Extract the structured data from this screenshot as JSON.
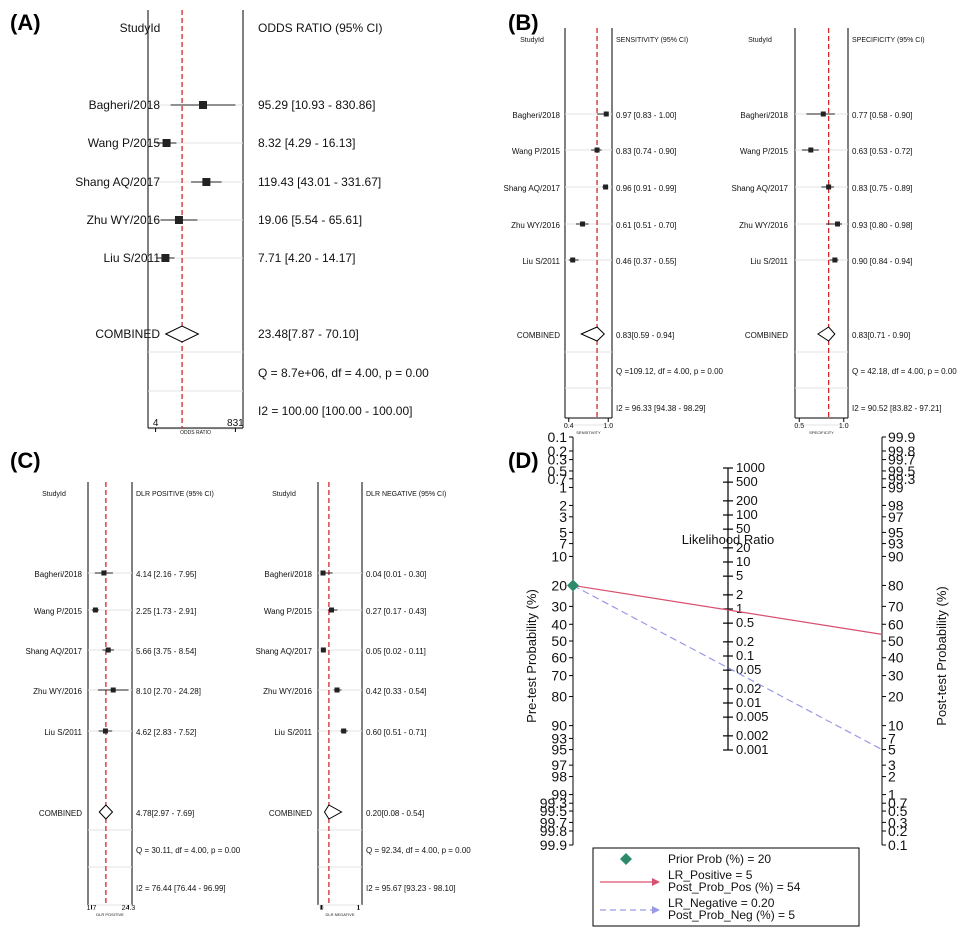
{
  "panels": [
    {
      "label": "(A)",
      "header_study": "StudyId",
      "header_stat": "ODDS RATIO (95% CI)",
      "axis_label": "ODDS RATIO",
      "axis_ticks": [
        "4",
        "831"
      ],
      "studies": [
        "Bagheri/2018",
        "Wang P/2015",
        "Shang AQ/2017",
        "Zhu WY/2016",
        "Liu S/2011"
      ],
      "stat_texts": [
        "95.29 [10.93 - 830.86]",
        "8.32 [4.29 - 16.13]",
        "119.43 [43.01 - 331.67]",
        "19.06 [5.54 - 65.61]",
        "7.71 [4.20 - 14.17]"
      ],
      "combined_label": "COMBINED",
      "combined_text": "23.48[7.87 - 70.10]",
      "q_text": "Q = 8.7e+06, df = 4.00, p =  0.00",
      "i2_text": "I2 = 100.00 [100.00 - 100.00]"
    },
    {
      "label": "(B)",
      "header_study": "StudyId",
      "header_stat": "SENSITIVITY (95% CI)",
      "axis_label": "SENSITIVITY",
      "axis_ticks": [
        "0.4",
        "1.0"
      ],
      "studies": [
        "Bagheri/2018",
        "Wang P/2015",
        "Shang AQ/2017",
        "Zhu WY/2016",
        "Liu S/2011"
      ],
      "stat_texts": [
        "0.97 [0.83 - 1.00]",
        "0.83 [0.74 - 0.90]",
        "0.96 [0.91 - 0.99]",
        "0.61 [0.51 - 0.70]",
        "0.46 [0.37 - 0.55]"
      ],
      "combined_label": "COMBINED",
      "combined_text": "0.83[0.59 - 0.94]",
      "q_text": "Q =109.12, df = 4.00, p =  0.00",
      "i2_text": "I2 = 96.33 [94.38 - 98.29]"
    },
    {
      "label": "",
      "header_study": "StudyId",
      "header_stat": "SPECIFICITY (95% CI)",
      "axis_label": "SPECIFICITY",
      "axis_ticks": [
        "0.5",
        "1.0"
      ],
      "studies": [
        "Bagheri/2018",
        "Wang P/2015",
        "Shang AQ/2017",
        "Zhu WY/2016",
        "Liu S/2011"
      ],
      "stat_texts": [
        "0.77 [0.58 - 0.90]",
        "0.63 [0.53 - 0.72]",
        "0.83 [0.75 - 0.89]",
        "0.93 [0.80 - 0.98]",
        "0.90 [0.84 - 0.94]"
      ],
      "combined_label": "COMBINED",
      "combined_text": "0.83[0.71 - 0.90]",
      "q_text": "Q = 42.18, df = 4.00, p =  0.00",
      "i2_text": "I2 = 90.52 [83.82 - 97.21]"
    },
    {
      "label": "(C)",
      "header_study": "StudyId",
      "header_stat": "DLR POSITIVE (95% CI)",
      "axis_label": "DLR POSITIVE",
      "axis_ticks": [
        "1.7",
        "24.3"
      ],
      "studies": [
        "Bagheri/2018",
        "Wang P/2015",
        "Shang AQ/2017",
        "Zhu WY/2016",
        "Liu S/2011"
      ],
      "stat_texts": [
        "4.14 [2.16 - 7.95]",
        "2.25 [1.73 - 2.91]",
        "5.66 [3.75 - 8.54]",
        "8.10 [2.70 - 24.28]",
        "4.62 [2.83 - 7.52]"
      ],
      "combined_label": "COMBINED",
      "combined_text": "4.78[2.97 - 7.69]",
      "q_text": "Q = 30.11, df = 4.00, p =  0.00",
      "i2_text": "I2 = 76.44 [76.44 - 96.99]"
    },
    {
      "label": "",
      "header_study": "StudyId",
      "header_stat": "DLR NEGATIVE (95% CI)",
      "axis_label": "DLR NEGATIVE",
      "axis_ticks": [
        "0",
        "1"
      ],
      "studies": [
        "Bagheri/2018",
        "Wang P/2015",
        "Shang AQ/2017",
        "Zhu WY/2016",
        "Liu S/2011"
      ],
      "stat_texts": [
        "0.04 [0.01 - 0.30]",
        "0.27 [0.17 - 0.43]",
        "0.05 [0.02 - 0.11]",
        "0.42 [0.33 - 0.54]",
        "0.60 [0.51 - 0.71]"
      ],
      "combined_label": "COMBINED",
      "combined_text": "0.20[0.08 - 0.54]",
      "q_text": "Q = 92.34, df = 4.00, p =  0.00",
      "i2_text": "I2 = 95.67 [93.23 - 98.10]"
    }
  ],
  "nomogram": {
    "label": "(D)",
    "left_axis_label": "Pre-test Probability (%)",
    "right_axis_label": "Post-test Probability (%)",
    "center_title": "Likelihood Ratio",
    "prob_ticks": [
      "0.1",
      "0.2",
      "0.3",
      "0.5",
      "0.7",
      "1",
      "2",
      "3",
      "5",
      "7",
      "10",
      "20",
      "30",
      "40",
      "50",
      "60",
      "70",
      "80",
      "90",
      "93",
      "95",
      "97",
      "98",
      "99",
      "99.3",
      "99.5",
      "99.7",
      "99.8",
      "99.9"
    ],
    "lr_ticks": [
      "1000",
      "500",
      "200",
      "100",
      "50",
      "20",
      "10",
      "5",
      "2",
      "1",
      "0.5",
      "0.2",
      "0.1",
      "0.05",
      "0.02",
      "0.01",
      "0.005",
      "0.002",
      "0.001"
    ],
    "legend": {
      "prior_text": "Prior Prob (%) =   20",
      "pos_text_1": "LR_Positive =       5",
      "pos_text_2": "Post_Prob_Pos (%) =   54",
      "neg_text_1": "LR_Negative =  0.20",
      "neg_text_2": "Post_Prob_Neg (%) =    5"
    },
    "colors": {
      "positive": "#d9506e",
      "negative": "#9a9ae6",
      "prior_marker": "#2e8b6a"
    }
  },
  "chart_data": [
    {
      "type": "forest",
      "title": "ODDS RATIO (95% CI)",
      "xlabel": "ODDS RATIO",
      "xlim": [
        4,
        831
      ],
      "scale": "log",
      "studies": [
        "Bagheri/2018",
        "Wang P/2015",
        "Shang AQ/2017",
        "Zhu WY/2016",
        "Liu S/2011"
      ],
      "values": [
        95.29,
        8.32,
        119.43,
        19.06,
        7.71
      ],
      "lower": [
        10.93,
        4.29,
        43.01,
        5.54,
        4.2
      ],
      "upper": [
        830.86,
        16.13,
        331.67,
        65.61,
        14.17
      ],
      "combined": {
        "value": 23.48,
        "lower": 7.87,
        "upper": 70.1
      },
      "heterogeneity": {
        "Q": "8.7e+06",
        "df": 4.0,
        "p": 0.0,
        "I2": 100.0,
        "I2_ci": [
          100.0,
          100.0
        ]
      }
    },
    {
      "type": "forest",
      "title": "SENSITIVITY (95% CI)",
      "xlabel": "SENSITIVITY",
      "xlim": [
        0.4,
        1.0
      ],
      "scale": "linear",
      "studies": [
        "Bagheri/2018",
        "Wang P/2015",
        "Shang AQ/2017",
        "Zhu WY/2016",
        "Liu S/2011"
      ],
      "values": [
        0.97,
        0.83,
        0.96,
        0.61,
        0.46
      ],
      "lower": [
        0.83,
        0.74,
        0.91,
        0.51,
        0.37
      ],
      "upper": [
        1.0,
        0.9,
        0.99,
        0.7,
        0.55
      ],
      "combined": {
        "value": 0.83,
        "lower": 0.59,
        "upper": 0.94
      },
      "heterogeneity": {
        "Q": 109.12,
        "df": 4.0,
        "p": 0.0,
        "I2": 96.33,
        "I2_ci": [
          94.38,
          98.29
        ]
      }
    },
    {
      "type": "forest",
      "title": "SPECIFICITY (95% CI)",
      "xlabel": "SPECIFICITY",
      "xlim": [
        0.5,
        1.0
      ],
      "scale": "linear",
      "studies": [
        "Bagheri/2018",
        "Wang P/2015",
        "Shang AQ/2017",
        "Zhu WY/2016",
        "Liu S/2011"
      ],
      "values": [
        0.77,
        0.63,
        0.83,
        0.93,
        0.9
      ],
      "lower": [
        0.58,
        0.53,
        0.75,
        0.8,
        0.84
      ],
      "upper": [
        0.9,
        0.72,
        0.89,
        0.98,
        0.94
      ],
      "combined": {
        "value": 0.83,
        "lower": 0.71,
        "upper": 0.9
      },
      "heterogeneity": {
        "Q": 42.18,
        "df": 4.0,
        "p": 0.0,
        "I2": 90.52,
        "I2_ci": [
          83.82,
          97.21
        ]
      }
    },
    {
      "type": "forest",
      "title": "DLR POSITIVE (95% CI)",
      "xlabel": "DLR POSITIVE",
      "xlim": [
        1.7,
        24.3
      ],
      "scale": "log",
      "studies": [
        "Bagheri/2018",
        "Wang P/2015",
        "Shang AQ/2017",
        "Zhu WY/2016",
        "Liu S/2011"
      ],
      "values": [
        4.14,
        2.25,
        5.66,
        8.1,
        4.62
      ],
      "lower": [
        2.16,
        1.73,
        3.75,
        2.7,
        2.83
      ],
      "upper": [
        7.95,
        2.91,
        8.54,
        24.28,
        7.52
      ],
      "combined": {
        "value": 4.78,
        "lower": 2.97,
        "upper": 7.69
      },
      "heterogeneity": {
        "Q": 30.11,
        "df": 4.0,
        "p": 0.0,
        "I2": 76.44,
        "I2_ci": [
          76.44,
          96.99
        ]
      }
    },
    {
      "type": "forest",
      "title": "DLR NEGATIVE (95% CI)",
      "xlabel": "DLR NEGATIVE",
      "xlim": [
        0,
        1
      ],
      "scale": "linear",
      "studies": [
        "Bagheri/2018",
        "Wang P/2015",
        "Shang AQ/2017",
        "Zhu WY/2016",
        "Liu S/2011"
      ],
      "values": [
        0.04,
        0.27,
        0.05,
        0.42,
        0.6
      ],
      "lower": [
        0.01,
        0.17,
        0.02,
        0.33,
        0.51
      ],
      "upper": [
        0.3,
        0.43,
        0.11,
        0.54,
        0.71
      ],
      "combined": {
        "value": 0.2,
        "lower": 0.08,
        "upper": 0.54
      },
      "heterogeneity": {
        "Q": 92.34,
        "df": 4.0,
        "p": 0.0,
        "I2": 95.67,
        "I2_ci": [
          93.23,
          98.1
        ]
      }
    },
    {
      "type": "fagan-nomogram",
      "prior_prob_percent": 20,
      "lr_positive": 5,
      "post_prob_pos_percent": 54,
      "lr_negative": 0.2,
      "post_prob_neg_percent": 5
    }
  ]
}
